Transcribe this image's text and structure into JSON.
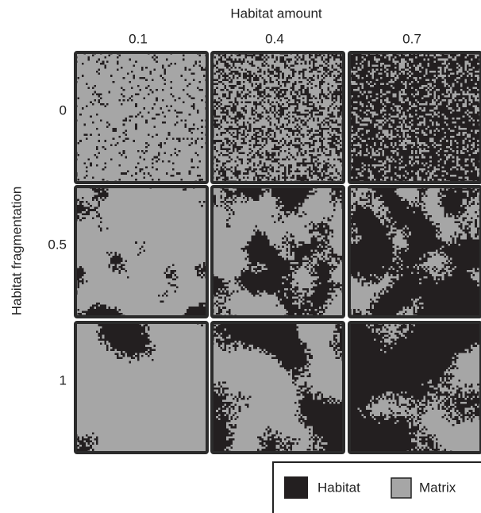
{
  "title": "Habitat amount",
  "columns": [
    0.1,
    0.4,
    0.7
  ],
  "row_axis_label": "Habitat fragmentation",
  "rows": [
    0,
    0.5,
    1
  ],
  "legend": [
    "Habitat",
    "Matrix"
  ]
}
